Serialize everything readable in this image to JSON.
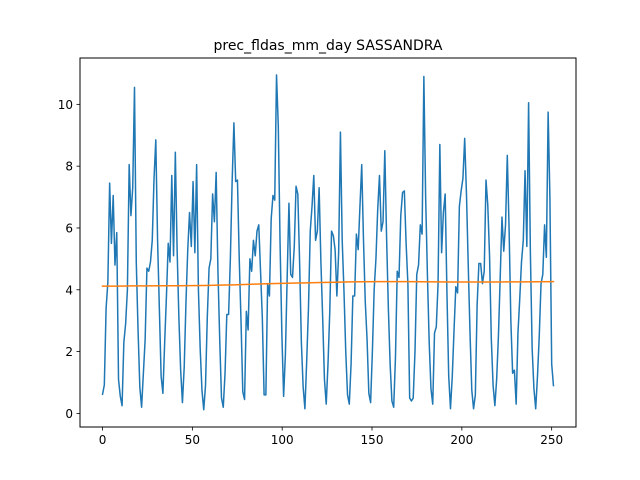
{
  "chart_data": {
    "type": "line",
    "title": "prec_fldas_mm_day SASSANDRA",
    "xlabel": "",
    "ylabel": "",
    "xlim": [
      -12.55,
      263.55
    ],
    "ylim": [
      -0.44,
      11.5
    ],
    "x_ticks": [
      0,
      50,
      100,
      150,
      200,
      250
    ],
    "y_ticks": [
      0,
      2,
      4,
      6,
      8,
      10
    ],
    "grid": false,
    "series": [
      {
        "color": "#1f77b4",
        "x_start": 0,
        "values": [
          0.62,
          0.92,
          3.4,
          4.25,
          7.45,
          5.5,
          7.05,
          4.8,
          5.85,
          1.1,
          0.55,
          0.25,
          2.3,
          2.9,
          4.0,
          8.05,
          6.4,
          7.3,
          10.55,
          4.9,
          2.7,
          0.85,
          0.2,
          1.3,
          2.4,
          4.7,
          4.6,
          4.9,
          5.6,
          7.6,
          8.85,
          5.6,
          3.4,
          1.2,
          0.65,
          2.3,
          3.8,
          5.5,
          4.9,
          7.7,
          5.1,
          8.45,
          5.3,
          3.1,
          1.4,
          0.35,
          1.5,
          3.6,
          5.3,
          6.5,
          5.4,
          7.5,
          5.2,
          8.05,
          4.0,
          2.1,
          0.75,
          0.12,
          0.9,
          3.1,
          4.7,
          5.0,
          7.1,
          6.2,
          7.8,
          4.6,
          2.4,
          0.5,
          0.2,
          1.3,
          3.2,
          3.2,
          5.0,
          7.5,
          9.4,
          7.5,
          7.55,
          5.0,
          3.0,
          0.7,
          0.45,
          3.3,
          2.7,
          5.0,
          4.6,
          5.6,
          5.1,
          5.9,
          6.1,
          4.6,
          3.1,
          0.6,
          0.6,
          4.2,
          3.8,
          6.3,
          7.05,
          6.9,
          10.95,
          9.3,
          5.5,
          2.6,
          0.55,
          1.9,
          4.4,
          6.8,
          4.5,
          4.4,
          5.4,
          7.35,
          7.1,
          4.9,
          2.3,
          0.85,
          0.15,
          1.7,
          3.4,
          5.9,
          6.7,
          7.7,
          5.6,
          5.9,
          7.3,
          4.9,
          3.1,
          1.1,
          0.3,
          1.6,
          3.3,
          5.9,
          5.75,
          5.3,
          3.8,
          5.2,
          9.1,
          5.6,
          3.95,
          2.0,
          0.6,
          0.3,
          1.6,
          3.8,
          3.8,
          5.8,
          5.3,
          6.7,
          8.05,
          5.6,
          3.6,
          2.4,
          0.65,
          0.35,
          2.0,
          4.0,
          5.0,
          6.6,
          7.7,
          5.9,
          6.2,
          8.5,
          5.7,
          3.4,
          1.6,
          0.4,
          0.2,
          1.8,
          4.6,
          4.4,
          6.4,
          7.15,
          7.2,
          5.5,
          4.2,
          0.5,
          0.4,
          0.5,
          2.0,
          4.5,
          4.8,
          6.1,
          5.8,
          10.9,
          7.0,
          4.5,
          2.3,
          0.8,
          0.3,
          2.6,
          2.8,
          4.2,
          8.7,
          5.2,
          6.5,
          7.1,
          3.9,
          1.2,
          0.15,
          1.2,
          2.7,
          4.1,
          3.9,
          6.7,
          7.2,
          7.6,
          8.9,
          7.1,
          4.8,
          2.6,
          0.75,
          0.15,
          0.6,
          3.5,
          4.85,
          4.85,
          4.2,
          4.6,
          7.55,
          6.75,
          5.1,
          2.4,
          0.9,
          0.25,
          1.1,
          2.5,
          4.4,
          6.35,
          5.25,
          6.1,
          8.35,
          6.0,
          3.0,
          1.3,
          1.4,
          0.3,
          2.6,
          3.7,
          4.9,
          5.6,
          7.85,
          5.4,
          10.05,
          5.2,
          2.1,
          0.8,
          0.15,
          1.2,
          2.5,
          4.2,
          4.5,
          6.1,
          5.05,
          9.75,
          7.0,
          1.6,
          0.9
        ]
      },
      {
        "color": "#ff7f0e",
        "x_start": 0,
        "values": [
          4.12,
          4.12,
          4.125,
          4.125,
          4.13,
          4.13,
          4.135,
          4.14,
          4.15,
          4.16,
          4.175,
          4.19,
          4.205,
          4.215,
          4.225,
          4.235,
          4.245,
          4.255,
          4.26,
          4.265,
          4.265,
          4.265,
          4.26,
          4.255,
          4.25,
          4.25,
          4.25,
          4.25,
          4.255,
          4.255,
          4.26,
          4.262
        ]
      }
    ]
  }
}
